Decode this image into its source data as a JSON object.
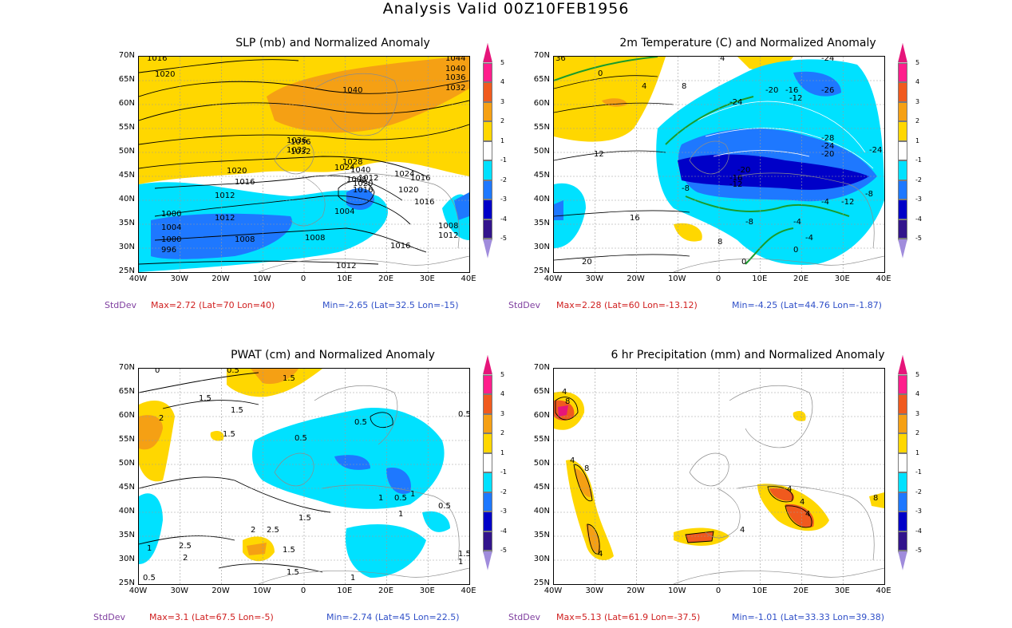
{
  "title": "Analysis Valid 00Z10FEB1956",
  "axes": {
    "lat_labels": [
      "70N",
      "65N",
      "60N",
      "55N",
      "50N",
      "45N",
      "40N",
      "35N",
      "30N",
      "25N"
    ],
    "lon_labels": [
      "40W",
      "30W",
      "20W",
      "10W",
      "0",
      "10E",
      "20E",
      "30E",
      "40E"
    ]
  },
  "colorbar": {
    "labels": [
      "5",
      "4",
      "3",
      "2",
      "1",
      "-1",
      "-2",
      "-3",
      "-4",
      "-5"
    ],
    "colors": [
      "#e6157a",
      "#ff1e8c",
      "#f05a1e",
      "#f5a014",
      "#ffd700",
      "#ffffff",
      "#00e1ff",
      "#1e78ff",
      "#0000c8",
      "#32148c",
      "#a08cdc"
    ]
  },
  "panels": [
    {
      "title": "SLP (mb) and Normalized Anomaly",
      "stats": {
        "label": "StdDev",
        "max": "Max=2.72 (Lat=70 Lon=40)",
        "min": "Min=-2.65 (Lat=32.5 Lon=-15)"
      },
      "contour_labels": [
        "1016",
        "1020",
        "1040",
        "1044",
        "1040",
        "1036",
        "1032",
        "1040",
        "1036",
        "1032",
        "1024",
        "1028",
        "1020",
        "1016",
        "1012",
        "1008",
        "1020",
        "1016",
        "1012",
        "1000",
        "1004",
        "1008",
        "1012",
        "1008",
        "1004",
        "1000",
        "996",
        "1024",
        "1020",
        "1016",
        "1008",
        "1012",
        "1016",
        "1012",
        "1016",
        "1036",
        "1032"
      ]
    },
    {
      "title": "2m Temperature (C) and Normalized Anomaly",
      "stats": {
        "label": "StdDev",
        "max": "Max=2.28 (Lat=60 Lon=-13.12)",
        "min": "Min=-4.25 (Lat=44.76 Lon=-1.87)"
      },
      "contour_labels": [
        "36",
        "4",
        "0",
        "4",
        "8",
        "-24",
        "-20",
        "-16",
        "-12",
        "-26",
        "-24",
        "-28",
        "-24",
        "-20",
        "-24",
        "12",
        "-20",
        "-16",
        "-12",
        "-8",
        "-8",
        "16",
        "20",
        "8",
        "0",
        "-8",
        "-4",
        "-4",
        "-12",
        "-4",
        "0"
      ]
    },
    {
      "title": "PWAT (cm) and Normalized Anomaly",
      "stats": {
        "label": "StdDev",
        "max": "Max=3.1 (Lat=67.5 Lon=-5)",
        "min": "Min=-2.74 (Lat=45 Lon=22.5)"
      },
      "contour_labels": [
        "0",
        "0.5",
        "1.5",
        "1.5",
        "1.5",
        "2",
        "1.5",
        "0.5",
        "0.5",
        "0.5",
        "1",
        "1",
        "0.5",
        "1.5",
        "2",
        "2.5",
        "2.5",
        "2",
        "1",
        "1.5",
        "1",
        "0.5",
        "0.5",
        "1.5",
        "1",
        "1.5",
        "1"
      ]
    },
    {
      "title": "6 hr Precipitation (mm) and Normalized Anomaly",
      "stats": {
        "label": "StdDev",
        "max": "Max=5.13 (Lat=61.9 Lon=-37.5)",
        "min": "Min=-1.01 (Lat=33.33 Lon=39.38)"
      },
      "contour_labels": [
        "4",
        "8",
        "4",
        "8",
        "4",
        "4",
        "4",
        "4",
        "4",
        "8"
      ]
    }
  ]
}
